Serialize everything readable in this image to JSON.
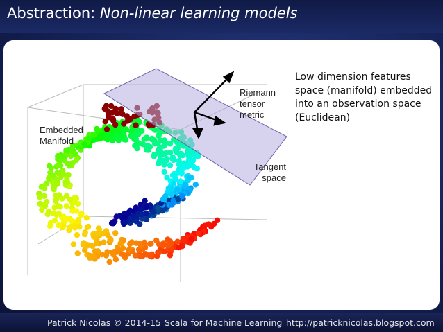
{
  "header": {
    "title_prefix": "Abstraction:",
    "title_emphasis": "Non-linear learning models"
  },
  "figure": {
    "label_manifold": "Embedded Manifold",
    "label_metric": "Riemann tensor metric",
    "label_tangent": "Tangent space"
  },
  "body": {
    "text": "Low dimension features space (manifold) embedded into an observation space (Euclidean)"
  },
  "footer": {
    "author": "Patrick Nicolas © 2014-15",
    "book": "Scala for Machine Learning",
    "url": "http://patricknicolas.blogspot.com"
  }
}
